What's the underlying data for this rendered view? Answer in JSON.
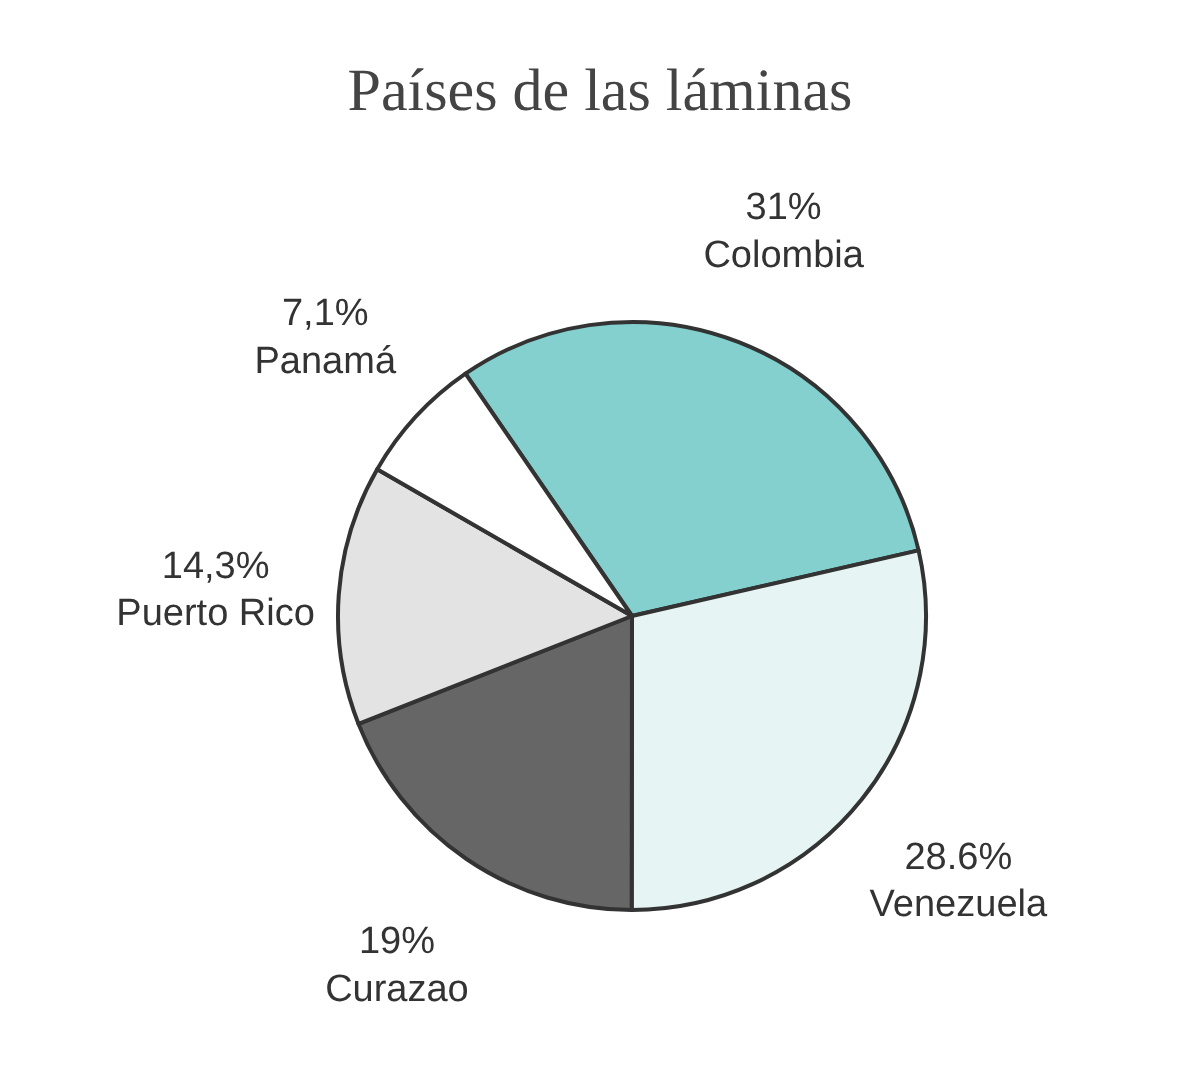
{
  "chart_data": {
    "type": "pie",
    "title": "Países de las láminas",
    "categories": [
      "Colombia",
      "Venezuela",
      "Curazao",
      "Puerto Rico",
      "Panamá"
    ],
    "values": [
      31,
      28.6,
      19,
      14.3,
      7.1
    ],
    "value_labels": [
      "31%",
      "28.6%",
      "19%",
      "14,3%",
      "7,1%"
    ],
    "colors": [
      "#83d0cf",
      "#e6f4f4",
      "#666666",
      "#e3e3e3",
      "#ffffff"
    ]
  }
}
